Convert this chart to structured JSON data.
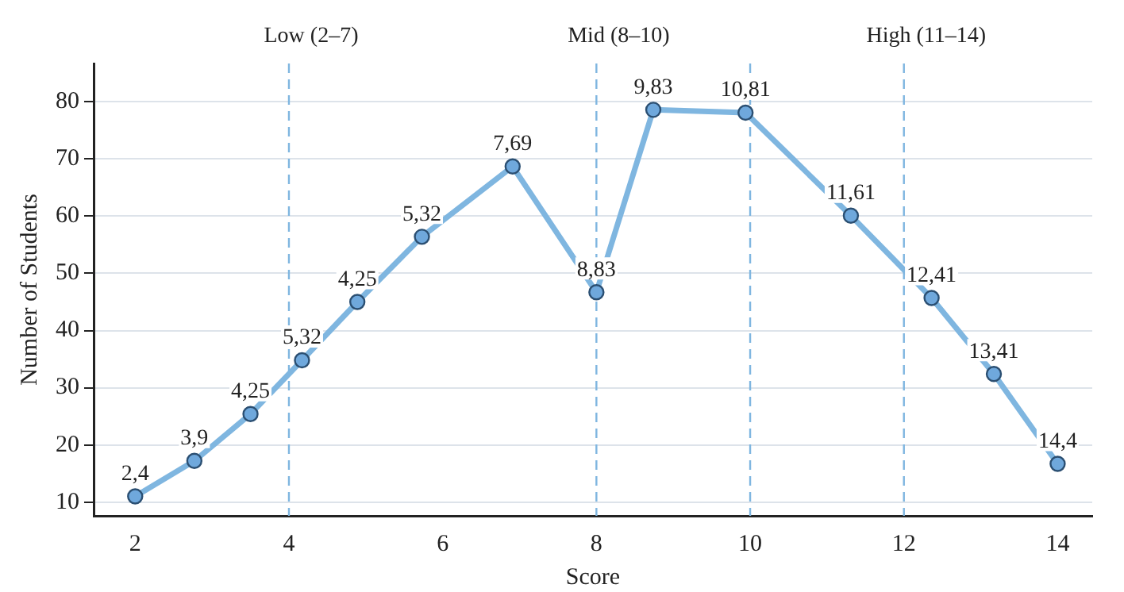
{
  "chart_data": {
    "type": "line",
    "xlabel": "Score",
    "ylabel": "Number of Students",
    "x": [
      2.0,
      2.77,
      3.5,
      4.17,
      4.89,
      5.73,
      6.91,
      8.0,
      8.74,
      9.94,
      11.31,
      12.36,
      13.17,
      14.0
    ],
    "series": [
      {
        "color": "#7fb6e0",
        "values": [
          11,
          17.2,
          25.4,
          34.8,
          45,
          56.4,
          68.7,
          46.7,
          78.6,
          78.1,
          60.1,
          45.7,
          32.4,
          16.7
        ]
      }
    ],
    "annotations": [
      {
        "text": "2,4",
        "x": 2.0,
        "y": 11
      },
      {
        "text": "3,9",
        "x": 2.77,
        "y": 17.2
      },
      {
        "text": "4,25",
        "x": 3.5,
        "y": 25.4
      },
      {
        "text": "5,32",
        "x": 4.17,
        "y": 34.8
      },
      {
        "text": "4,25",
        "x": 4.89,
        "y": 45
      },
      {
        "text": "5,32",
        "x": 5.73,
        "y": 56.4
      },
      {
        "text": "7,69",
        "x": 6.91,
        "y": 68.7
      },
      {
        "text": "8,83",
        "x": 8.0,
        "y": 46.7
      },
      {
        "text": "9,83",
        "x": 8.74,
        "y": 78.6
      },
      {
        "text": "10,81",
        "x": 9.94,
        "y": 78.1
      },
      {
        "text": "11,61",
        "x": 11.31,
        "y": 60.1
      },
      {
        "text": "12,41",
        "x": 12.36,
        "y": 45.7
      },
      {
        "text": "13,41",
        "x": 13.17,
        "y": 32.4
      },
      {
        "text": "14,4",
        "x": 14.0,
        "y": 16.7
      }
    ],
    "xlim": [
      1.46,
      14.45
    ],
    "ylim": [
      7.6,
      86.7
    ],
    "xticks": [
      2,
      4,
      6,
      8,
      10,
      12,
      14
    ],
    "yticks": [
      10,
      20,
      30,
      40,
      50,
      60,
      70,
      80
    ],
    "ref_lines": [
      {
        "axis": "x",
        "value": 4,
        "label": "Low (2–7)",
        "color": "#7fb6e0",
        "line_style": "dashed"
      },
      {
        "axis": "x",
        "value": 8,
        "label": "Mid (8–10)",
        "color": "#7fb6e0",
        "line_style": "dashed"
      },
      {
        "axis": "x",
        "value": 10,
        "color": "#7fb6e0",
        "line_style": "dashed"
      },
      {
        "axis": "x",
        "value": 12,
        "label": "High (11–14)",
        "color": "#7fb6e0",
        "line_style": "dashed"
      }
    ],
    "grid": "y",
    "legend": false,
    "marker": "circle",
    "line_style": "solid"
  }
}
